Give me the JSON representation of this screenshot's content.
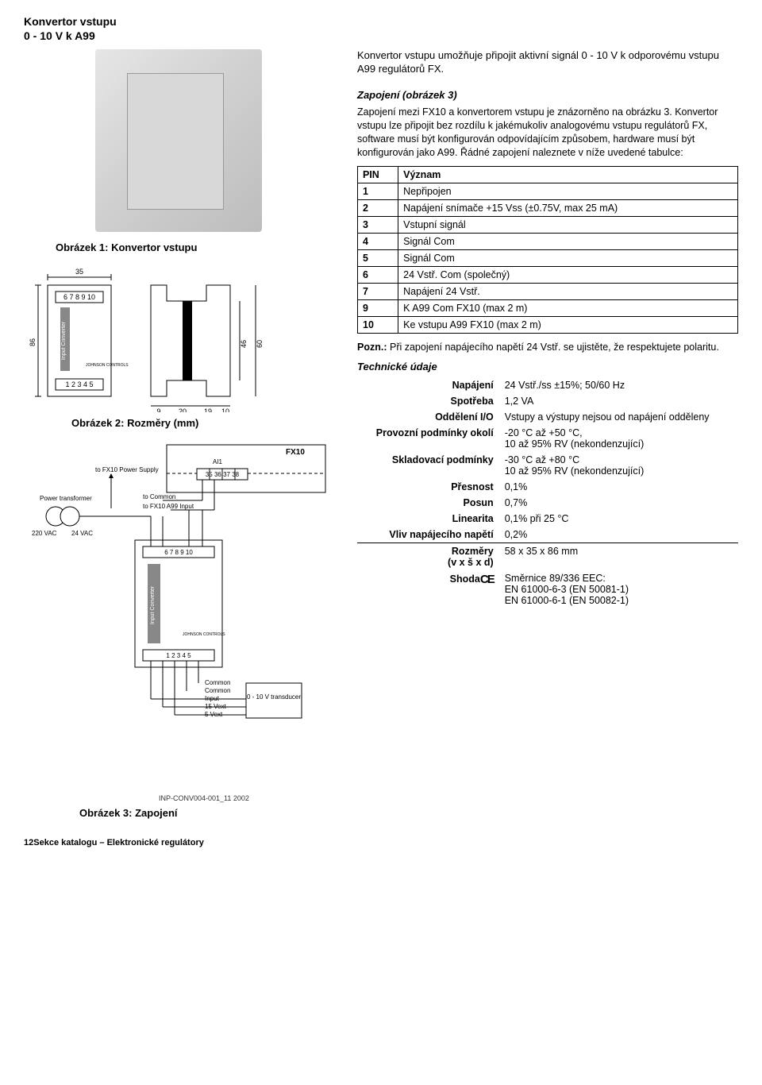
{
  "header": {
    "line1": "Konvertor vstupu",
    "line2": "0 - 10 V k A99"
  },
  "intro": "Konvertor vstupu umožňuje připojit aktivní signál 0 - 10 V k odporovému vstupu A99 regulátorů FX.",
  "zapojeni": {
    "title": "Zapojení (obrázek 3)",
    "body": "Zapojení mezi FX10 a konvertorem vstupu je znázorněno na obrázku 3. Konvertor vstupu lze připojit bez rozdílu k jakémukoliv analogovému vstupu regulátorů FX, software musí být konfigurován odpovídajícím způsobem, hardware musí být konfigurován jako A99. Řádné zapojení naleznete v níže uvedené tabulce:"
  },
  "figure1": {
    "caption": "Obrázek 1: Konvertor vstupu"
  },
  "figure2": {
    "caption": "Obrázek 2: Rozměry (mm)",
    "dims": {
      "w_left": "35",
      "h_total": "86",
      "d_a": "9",
      "d_b": "20",
      "d_c": "19",
      "d_d": "10",
      "h_mid": "46",
      "h_outer": "60"
    },
    "terminals_top": "6  7  8  9  10",
    "terminals_bottom": "1  2  3  4  5",
    "brand": "JOHNSON CONTROLS",
    "label": "Input Converter"
  },
  "figure3": {
    "caption": "Obrázek 3: Zapojení",
    "labels": {
      "fx10": "FX10",
      "ai1": "AI1",
      "pins": "35 36 37 38",
      "to_common": "to Common",
      "to_fx10_a99": "to FX10 A99 Input",
      "to_fx10_pwr": "to FX10 Power Supply",
      "power_trans": "Power transformer",
      "v220": "220 VAC",
      "v24": "24 VAC",
      "terminals_top": "6  7  8  9  10",
      "terminals_bottom": "1  2  3  4  5",
      "conv": "Input Converter",
      "brand": "JOHNSON CONTROLS",
      "common": "Common",
      "input": "Input",
      "v15ext": "15 Vext",
      "v5ext": "5 Vext",
      "transducer": "0 - 10 V transducer"
    }
  },
  "pin_table": {
    "headers": {
      "pin": "PIN",
      "meaning": "Význam"
    },
    "rows": [
      {
        "pin": "1",
        "meaning": "Nepřipojen"
      },
      {
        "pin": "2",
        "meaning": "Napájení snímače +15 Vss (±0.75V, max 25 mA)"
      },
      {
        "pin": "3",
        "meaning": "Vstupní signál"
      },
      {
        "pin": "4",
        "meaning": "Signál Com"
      },
      {
        "pin": "5",
        "meaning": "Signál Com"
      },
      {
        "pin": "6",
        "meaning": "24 Vstř. Com (společný)"
      },
      {
        "pin": "7",
        "meaning": "Napájení 24 Vstř."
      },
      {
        "pin": "9",
        "meaning": "K A99 Com FX10 (max 2 m)"
      },
      {
        "pin": "10",
        "meaning": "Ke vstupu A99 FX10 (max 2 m)"
      }
    ]
  },
  "note": {
    "label": "Pozn.:",
    "text": "Při zapojení napájecího napětí 24 Vstř. se ujistěte, že respektujete polaritu."
  },
  "tech_title": "Technické údaje",
  "specs": {
    "group1": [
      {
        "k": "Napájení",
        "v": "24 Vstř./ss ±15%;   50/60 Hz"
      },
      {
        "k": "Spotřeba",
        "v": "1,2 VA"
      },
      {
        "k": "Oddělení I/O",
        "v": "Vstupy a výstupy nejsou od napájení odděleny"
      },
      {
        "k": "Provozní podmínky okolí",
        "v": "-20 °C až +50 °C,\n10 až 95% RV (nekondenzující)"
      },
      {
        "k": "Skladovací podmínky",
        "v": "-30 °C až +80 °C\n10 až 95% RV (nekondenzující)"
      },
      {
        "k": "Přesnost",
        "v": "0,1%"
      },
      {
        "k": "Posun",
        "v": "0,7%"
      },
      {
        "k": "Linearita",
        "v": "0,1% při 25 °C"
      },
      {
        "k": "Vliv napájecího napětí",
        "v": "0,2%"
      }
    ],
    "group2": [
      {
        "k": "Rozměry\n(v x š x d)",
        "v": "58 x 35 x 86 mm"
      },
      {
        "k": "Shoda",
        "v": "Směrnice 89/336 EEC:\nEN 61000-6-3 (EN 50081-1)\nEN 61000-6-1 (EN 50082-1)",
        "ce": true
      }
    ]
  },
  "partnum": "INP-CONV004-001_11 2002",
  "footer": {
    "page": "12",
    "section": "Sekce katalogu – Elektronické regulátory"
  }
}
